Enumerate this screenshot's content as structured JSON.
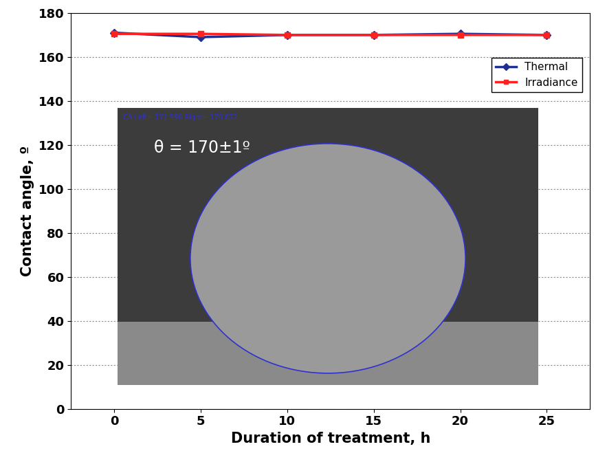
{
  "chart_data": {
    "type": "line",
    "x_label": "Duration of treatment, h",
    "y_label": "Contact angle, º",
    "categories": [
      "0",
      "5",
      "10",
      "15",
      "20",
      "25"
    ],
    "series": [
      {
        "name": "Thermal",
        "color": "#1f2f8f",
        "marker": "diamond",
        "values": [
          171,
          169,
          170,
          170,
          170.5,
          170
        ]
      },
      {
        "name": "Irradiance",
        "color": "#ff2020",
        "marker": "square",
        "values": [
          170.5,
          170.5,
          170,
          170,
          170,
          170
        ]
      }
    ],
    "ylim": [
      0,
      180
    ],
    "yticks": [
      0,
      20,
      40,
      60,
      80,
      100,
      120,
      140,
      160,
      180
    ],
    "grid": true,
    "legend": "upper right",
    "annotations": [
      "θ = 170±1º",
      "CA Left= 171.598 Right= 170.872"
    ]
  }
}
